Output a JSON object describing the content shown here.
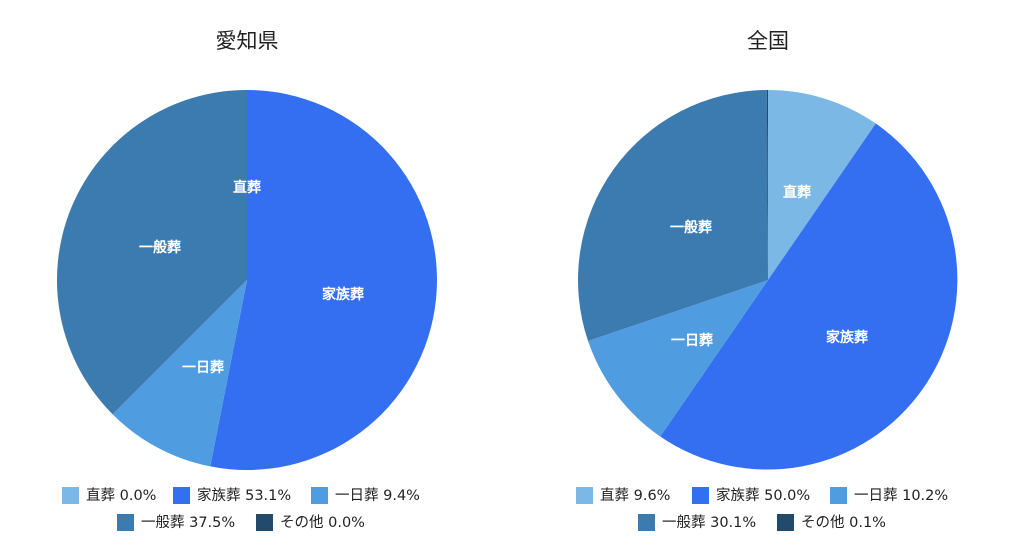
{
  "chart_data": [
    {
      "type": "pie",
      "title": "愛知県",
      "slices": [
        {
          "name": "直葬",
          "label": "直葬",
          "value": 0.0,
          "legend": "直葬 0.0%",
          "color": "#7BB8E6"
        },
        {
          "name": "家族葬",
          "label": "家族葬",
          "value": 53.1,
          "legend": "家族葬 53.1%",
          "color": "#346FF2"
        },
        {
          "name": "一日葬",
          "label": "一日葬",
          "value": 9.4,
          "legend": "一日葬 9.4%",
          "color": "#4F9DE0"
        },
        {
          "name": "一般葬",
          "label": "一般葬",
          "value": 37.5,
          "legend": "一般葬 37.5%",
          "color": "#3C7BAF"
        },
        {
          "name": "その他",
          "label": "",
          "value": 0.0,
          "legend": "その他 0.0%",
          "color": "#214A6B"
        }
      ]
    },
    {
      "type": "pie",
      "title": "全国",
      "slices": [
        {
          "name": "直葬",
          "label": "直葬",
          "value": 9.6,
          "legend": "直葬 9.6%",
          "color": "#7BB8E6"
        },
        {
          "name": "家族葬",
          "label": "家族葬",
          "value": 50.0,
          "legend": "家族葬 50.0%",
          "color": "#346FF2"
        },
        {
          "name": "一日葬",
          "label": "一日葬",
          "value": 10.2,
          "legend": "一日葬 10.2%",
          "color": "#4F9DE0"
        },
        {
          "name": "一般葬",
          "label": "一般葬",
          "value": 30.1,
          "legend": "一般葬 30.1%",
          "color": "#3C7BAF"
        },
        {
          "name": "その他",
          "label": "",
          "value": 0.1,
          "legend": "その他 0.1%",
          "color": "#214A6B"
        }
      ]
    }
  ]
}
